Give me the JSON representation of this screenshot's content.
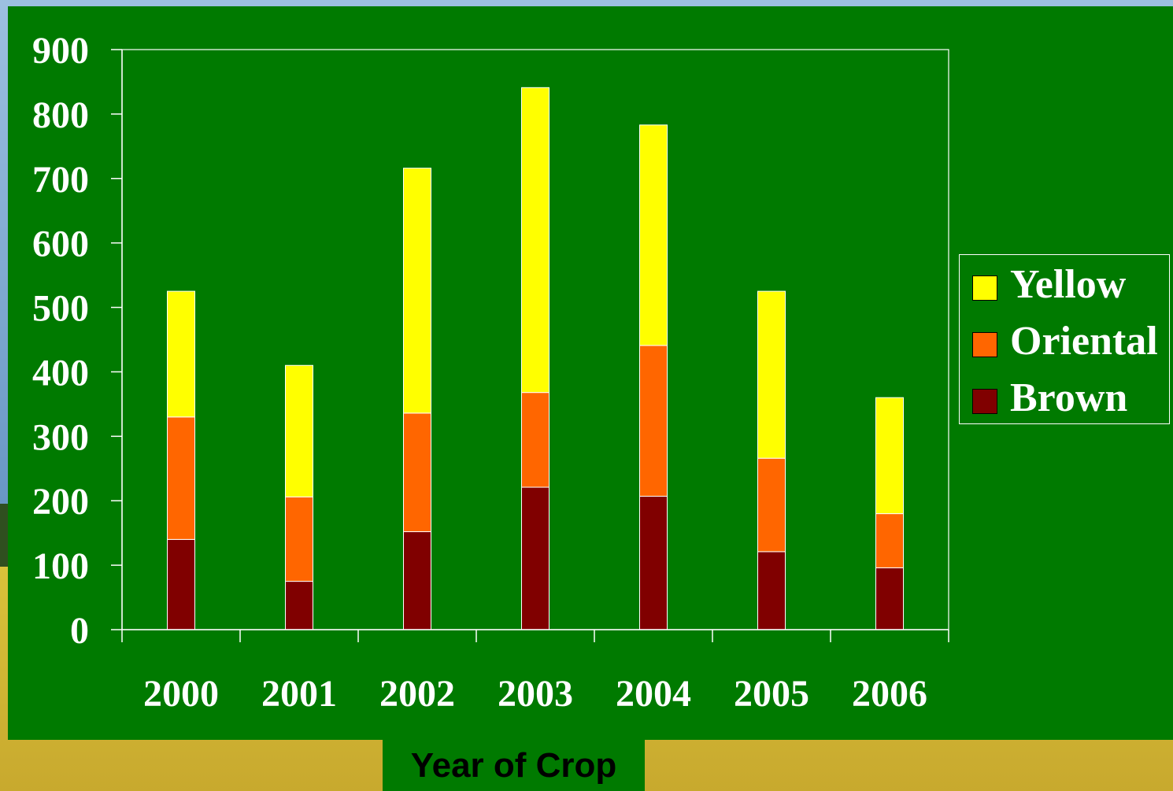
{
  "colors": {
    "panel": "#007a00",
    "axis": "#ffffff",
    "brown": "#800000",
    "oriental": "#ff6600",
    "yellow": "#ffff00"
  },
  "chart_data": {
    "type": "bar",
    "stacked": true,
    "categories": [
      "2000",
      "2001",
      "2002",
      "2003",
      "2004",
      "2005",
      "2006"
    ],
    "series": [
      {
        "name": "Brown",
        "color": "#800000",
        "values": [
          140,
          75,
          152,
          221,
          207,
          121,
          96
        ]
      },
      {
        "name": "Oriental",
        "color": "#ff6600",
        "values": [
          190,
          131,
          184,
          147,
          234,
          145,
          84
        ]
      },
      {
        "name": "Yellow",
        "color": "#ffff00",
        "values": [
          195,
          204,
          380,
          473,
          342,
          259,
          180
        ]
      }
    ],
    "xlabel": "Year of Crop",
    "ylabel": "",
    "title": "",
    "ylim": [
      0,
      900
    ],
    "yticks": [
      "0",
      "100",
      "200",
      "300",
      "400",
      "500",
      "600",
      "700",
      "800",
      "900"
    ],
    "grid": false,
    "legend": {
      "position": "right",
      "entries": [
        "Yellow",
        "Oriental",
        "Brown"
      ]
    }
  }
}
